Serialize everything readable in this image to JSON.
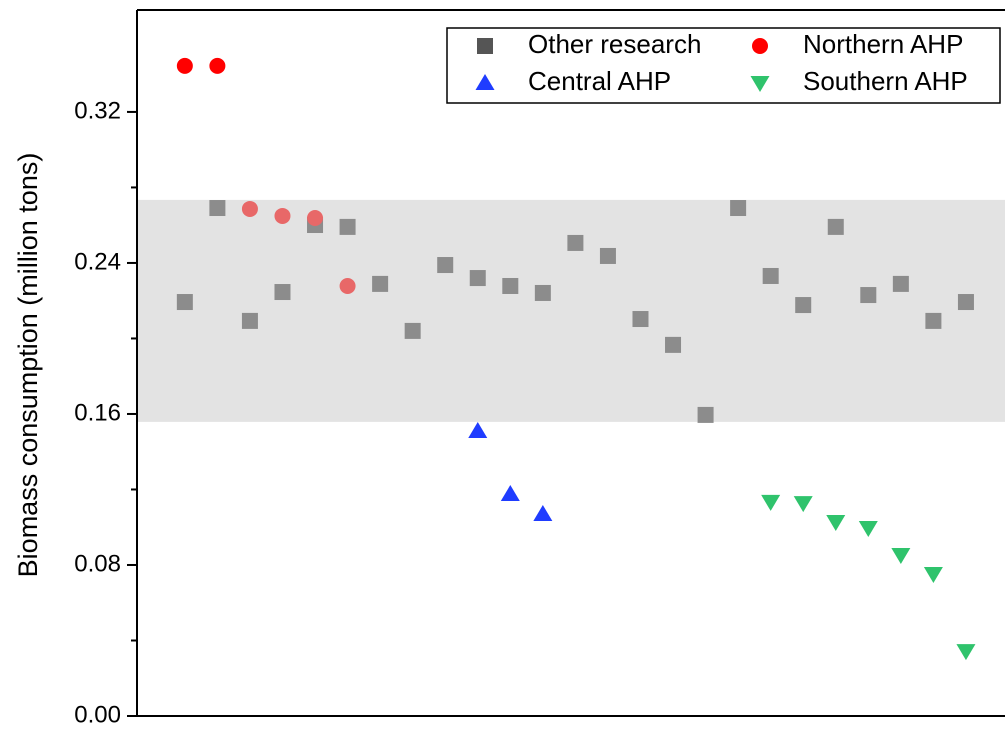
{
  "chart_data": {
    "type": "scatter",
    "ylabel": "Biomass consumption (million tons)",
    "xlim": [
      -0.47,
      26.2
    ],
    "ylim": [
      0,
      0.374
    ],
    "yticks": [
      {
        "value": 0,
        "label": "0.00"
      },
      {
        "value": 0.08,
        "label": "0.08"
      },
      {
        "value": 0.16,
        "label": "0.16"
      },
      {
        "value": 0.24,
        "label": "0.24"
      },
      {
        "value": 0.32,
        "label": "0.32"
      }
    ],
    "band": [
      0.1558,
      0.2734
    ],
    "band_color": "#e3e3e3",
    "legend": "upper right",
    "series": [
      {
        "name": "Other research",
        "color": "#555555",
        "point_color": "#8c8c8c",
        "marker": "square",
        "x": [
          1,
          2,
          3,
          4,
          5,
          6,
          7,
          8,
          9,
          10,
          11,
          12,
          13,
          14,
          15,
          16,
          17,
          18,
          19,
          20,
          21,
          22,
          23,
          24,
          25
        ],
        "values": [
          0.2193,
          0.2691,
          0.2093,
          0.2246,
          0.2601,
          0.2591,
          0.2289,
          0.204,
          0.2389,
          0.232,
          0.2278,
          0.2241,
          0.2506,
          0.2437,
          0.2103,
          0.1966,
          0.1595,
          0.2691,
          0.2331,
          0.2177,
          0.2591,
          0.223,
          0.2289,
          0.2093,
          0.2193
        ]
      },
      {
        "name": "Northern AHP",
        "color": "#ff0000",
        "marker": "circle",
        "point_colors": [
          "#ff0000",
          "#ff0000",
          "#e86868",
          "#e86868",
          "#e86868",
          "#e86868"
        ],
        "x": [
          1,
          2,
          3,
          4,
          5,
          6
        ],
        "values": [
          0.3444,
          0.3444,
          0.2686,
          0.2649,
          0.2638,
          0.2278
        ]
      },
      {
        "name": "Central AHP",
        "color": "#1f3cff",
        "marker": "triangle-up",
        "x": [
          10,
          11,
          12
        ],
        "values": [
          0.151,
          0.1176,
          0.107
        ]
      },
      {
        "name": "Southern AHP",
        "color": "#2fc36c",
        "marker": "triangle-down",
        "x": [
          19,
          20,
          21,
          22,
          23,
          24,
          25
        ],
        "values": [
          0.1134,
          0.1128,
          0.1028,
          0.0996,
          0.0853,
          0.0752,
          0.0344
        ]
      }
    ]
  }
}
